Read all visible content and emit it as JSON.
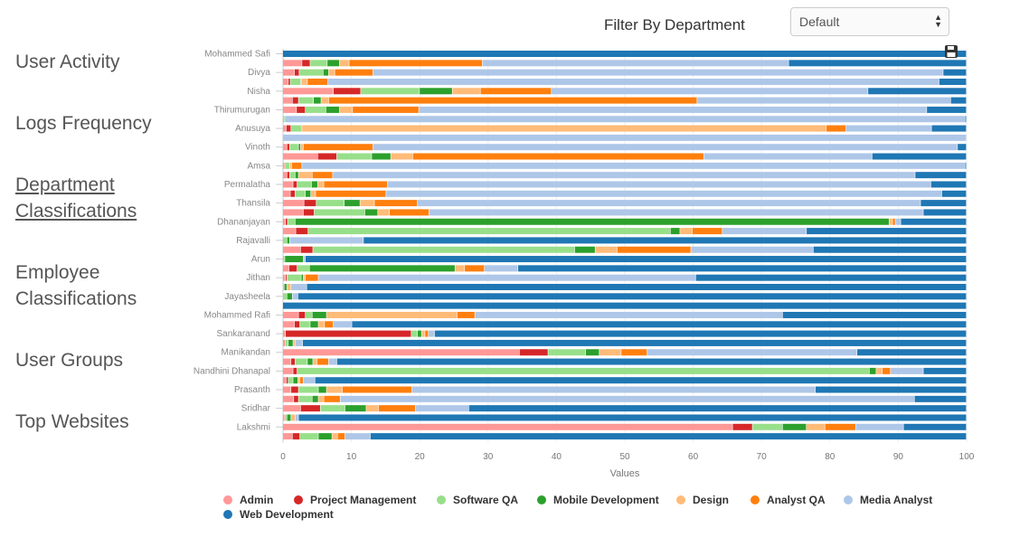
{
  "menu": {
    "items": [
      {
        "label": "User Activity"
      },
      {
        "label": "Logs Frequency"
      },
      {
        "label": "Department Classifications",
        "active": true
      },
      {
        "label": "Employee Classifications"
      },
      {
        "label": "User Groups"
      },
      {
        "label": "Top Websites"
      }
    ]
  },
  "filter": {
    "label": "Filter By Department",
    "selected": "Default"
  },
  "toolbar": {
    "save_icon": "floppy-disk-icon"
  },
  "chart_data": {
    "type": "bar",
    "orientation": "horizontal",
    "stacked": true,
    "xlabel": "Values",
    "xlim": [
      0,
      100
    ],
    "xticks": [
      0,
      10,
      20,
      30,
      40,
      50,
      60,
      70,
      80,
      90,
      100
    ],
    "grid": true,
    "legend_position": "bottom",
    "categories": [
      "Mohammed Safi",
      "",
      "Divya",
      "",
      "Nisha",
      "",
      "Thirumurugan",
      "",
      "Anusuya",
      "",
      "Vinoth",
      "",
      "Amsa",
      "",
      "Permalatha",
      "",
      "Thansila",
      "",
      "Dhananjayan",
      "",
      "Rajavalli",
      "",
      "Arun",
      "",
      "Jithan",
      "",
      "Jayasheela",
      "",
      "Mohammed Rafi",
      "",
      "Sankaranand",
      "",
      "Manikandan",
      "",
      "Nandhini Dhanapal",
      "",
      "Prasanth",
      "",
      "Sridhar",
      "",
      "Lakshmi",
      ""
    ],
    "series": [
      {
        "name": "Admin",
        "color": "#ff9896",
        "values": [
          0,
          2.8,
          1.7,
          0.8,
          7.4,
          1.4,
          2.0,
          0,
          0.5,
          0,
          0.6,
          5.1,
          0.3,
          0.6,
          1.5,
          1.1,
          3.1,
          3.0,
          0.4,
          1.9,
          0,
          2.6,
          0,
          0.9,
          0.4,
          0,
          0,
          0,
          2.3,
          1.7,
          0.4,
          0.4,
          34.6,
          1.2,
          1.5,
          0.5,
          1.2,
          1.6,
          2.6,
          0.3,
          65.8,
          1.4
        ]
      },
      {
        "name": "Project Management",
        "color": "#d62728",
        "values": [
          0,
          1.2,
          0.7,
          0.3,
          4.0,
          0.9,
          1.3,
          0,
          0.7,
          0,
          0.4,
          2.8,
          0,
          0.4,
          0.6,
          0.7,
          1.8,
          1.6,
          0.3,
          1.8,
          0,
          1.8,
          0,
          1.2,
          0.2,
          0,
          0,
          0,
          1.0,
          0.8,
          18.4,
          0,
          4.2,
          0.6,
          0.6,
          0.3,
          1.1,
          0.7,
          2.9,
          0,
          2.9,
          1.1
        ]
      },
      {
        "name": "Software QA",
        "color": "#98df8a",
        "values": [
          0,
          2.5,
          3.5,
          1.5,
          8.6,
          2.2,
          3.0,
          0.3,
          1.6,
          0,
          1.3,
          5.1,
          0.7,
          0.8,
          2.1,
          1.5,
          4.1,
          7.4,
          1.1,
          53.0,
          0.6,
          38.3,
          0.3,
          1.8,
          2.1,
          0.2,
          0.6,
          0,
          1.0,
          1.5,
          0.9,
          0.4,
          5.5,
          1.8,
          83.7,
          0.7,
          2.9,
          2.0,
          3.6,
          0.3,
          4.4,
          2.7
        ]
      },
      {
        "name": "Mobile Development",
        "color": "#2ca02c",
        "values": [
          0,
          1.8,
          0.8,
          0.1,
          4.8,
          1.1,
          2.0,
          0,
          0,
          0,
          0.3,
          2.8,
          0,
          0.5,
          0.9,
          0.8,
          2.3,
          1.9,
          86.9,
          1.4,
          0.4,
          3.0,
          2.7,
          21.3,
          0.3,
          0.4,
          0.8,
          0,
          2.1,
          1.2,
          0.6,
          0.7,
          2.0,
          0.8,
          1.0,
          0.7,
          1.2,
          0.9,
          3.1,
          0.6,
          3.5,
          2.0
        ]
      },
      {
        "name": "Design",
        "color": "#ffbb78",
        "values": [
          0,
          1.4,
          0.9,
          0.9,
          4.1,
          1.1,
          1.9,
          0,
          76.7,
          0,
          0.4,
          3.2,
          0.3,
          2.0,
          0.9,
          0.7,
          2.1,
          1.7,
          0.5,
          1.8,
          0,
          3.2,
          0,
          1.4,
          0.3,
          0.6,
          0,
          0,
          19.1,
          0.9,
          0.5,
          0.3,
          3.2,
          0.6,
          0.9,
          0.3,
          2.3,
          0.8,
          1.8,
          0.6,
          2.7,
          0.8
        ]
      },
      {
        "name": "Analyst QA",
        "color": "#ff7f0e",
        "values": [
          0,
          19.5,
          5.6,
          3.0,
          10.4,
          53.9,
          9.7,
          0,
          2.9,
          0,
          10.2,
          42.6,
          1.5,
          3.0,
          9.3,
          10.3,
          6.3,
          5.8,
          0.4,
          4.4,
          0,
          10.8,
          0,
          2.9,
          1.9,
          0,
          0,
          0,
          2.6,
          1.3,
          0.5,
          0,
          3.8,
          1.7,
          1.2,
          0.5,
          10.2,
          2.4,
          5.4,
          0,
          4.5,
          1.1
        ]
      },
      {
        "name": "Media Analyst",
        "color": "#aec7e8",
        "values": [
          0,
          44.8,
          83.4,
          89.4,
          46.3,
          37.1,
          74.3,
          99.5,
          12.5,
          100,
          85.5,
          24.6,
          97.0,
          85.2,
          79.5,
          81.3,
          73.6,
          72.3,
          0.8,
          12.3,
          10.8,
          17.9,
          0.3,
          4.9,
          55.2,
          2.3,
          0.8,
          0,
          45.0,
          2.7,
          0.9,
          1.1,
          30.7,
          1.2,
          4.8,
          1.7,
          59.0,
          84.0,
          7.8,
          0.5,
          7.0,
          3.7
        ]
      },
      {
        "name": "Web Development",
        "color": "#1f77b4",
        "values": [
          100,
          26.0,
          3.4,
          4.0,
          14.4,
          2.3,
          5.8,
          0.2,
          5.1,
          0,
          1.3,
          13.8,
          0.2,
          7.5,
          5.2,
          3.6,
          6.7,
          6.3,
          9.6,
          23.4,
          88.2,
          22.4,
          96.7,
          65.6,
          39.6,
          96.5,
          97.8,
          100,
          26.9,
          89.9,
          77.8,
          97.1,
          16.0,
          92.1,
          6.3,
          95.3,
          22.1,
          7.6,
          72.8,
          97.7,
          9.2,
          87.2
        ]
      }
    ]
  }
}
